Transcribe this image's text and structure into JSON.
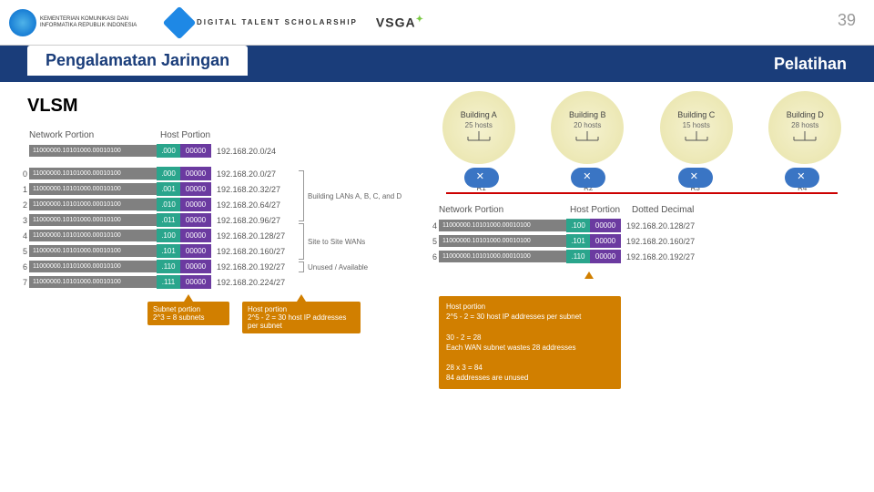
{
  "page_number": "39",
  "logos": {
    "kominfo": "KEMENTERIAN KOMUNIKASI DAN INFORMATIKA REPUBLIK INDONESIA",
    "digitalent": "DIGITAL TALENT SCHOLARSHIP",
    "vsga": "VSGA"
  },
  "title_bar": {
    "left": "Pengalamatan Jaringan",
    "right": "Pelatihan"
  },
  "section_title": "VLSM",
  "colors": {
    "title_bg": "#1a3d7a",
    "net_bits_bg": "#808080",
    "sub_bits_bg": "#2aa58c",
    "host_bits_bg": "#6b3aa0",
    "callout_bg": "#d17f00",
    "router_bg": "#3a75c4",
    "wan_line": "#cc0000",
    "building_circle": "#e8e3a8"
  },
  "left_diagram": {
    "headers": {
      "net": "Network Portion",
      "host": "Host Portion"
    },
    "top_row": {
      "net_bits": "11000000.10101000.00010100",
      "sub_bits": ".000",
      "host_bits": "00000",
      "dd": "192.168.20.0/24"
    },
    "rows": [
      {
        "idx": "0",
        "net": "11000000.10101000.00010100",
        "sub": ".000",
        "host": "00000",
        "dd": "192.168.20.0/27"
      },
      {
        "idx": "1",
        "net": "11000000.10101000.00010100",
        "sub": ".001",
        "host": "00000",
        "dd": "192.168.20.32/27"
      },
      {
        "idx": "2",
        "net": "11000000.10101000.00010100",
        "sub": ".010",
        "host": "00000",
        "dd": "192.168.20.64/27"
      },
      {
        "idx": "3",
        "net": "11000000.10101000.00010100",
        "sub": ".011",
        "host": "00000",
        "dd": "192.168.20.96/27"
      },
      {
        "idx": "4",
        "net": "11000000.10101000.00010100",
        "sub": ".100",
        "host": "00000",
        "dd": "192.168.20.128/27"
      },
      {
        "idx": "5",
        "net": "11000000.10101000.00010100",
        "sub": ".101",
        "host": "00000",
        "dd": "192.168.20.160/27"
      },
      {
        "idx": "6",
        "net": "11000000.10101000.00010100",
        "sub": ".110",
        "host": "00000",
        "dd": "192.168.20.192/27"
      },
      {
        "idx": "7",
        "net": "11000000.10101000.00010100",
        "sub": ".111",
        "host": "00000",
        "dd": "192.168.20.224/27"
      }
    ],
    "brackets": {
      "lan": "Building LANs A, B, C, and D",
      "wan": "Site to Site WANs",
      "unused": "Unused / Available"
    },
    "callout_subnet": "Subnet portion\n2^3 = 8 subnets",
    "callout_host": "Host portion\n2^5 - 2 = 30 host IP addresses per subnet"
  },
  "right_diagram": {
    "buildings": [
      {
        "name": "Building A",
        "hosts": "25 hosts",
        "router": "R1"
      },
      {
        "name": "Building B",
        "hosts": "20 hosts",
        "router": "R2"
      },
      {
        "name": "Building C",
        "hosts": "15 hosts",
        "router": "R3"
      },
      {
        "name": "Building D",
        "hosts": "28 hosts",
        "router": "R4"
      }
    ],
    "headers": {
      "net": "Network Portion",
      "host": "Host Portion",
      "dd": "Dotted Decimal"
    },
    "rows": [
      {
        "idx": "4",
        "net": "11000000.10101000.00010100",
        "sub": ".100",
        "host": "00000",
        "dd": "192.168.20.128/27"
      },
      {
        "idx": "5",
        "net": "11000000.10101000.00010100",
        "sub": ".101",
        "host": "00000",
        "dd": "192.168.20.160/27"
      },
      {
        "idx": "6",
        "net": "11000000.10101000.00010100",
        "sub": ".110",
        "host": "00000",
        "dd": "192.168.20.192/27"
      }
    ],
    "callout": "Host portion\n2^5 - 2 = 30 host IP addresses per subnet\n\n30 - 2 = 28\nEach WAN subnet wastes 28 addresses\n\n28 x 3 = 84\n84 addresses are unused"
  }
}
